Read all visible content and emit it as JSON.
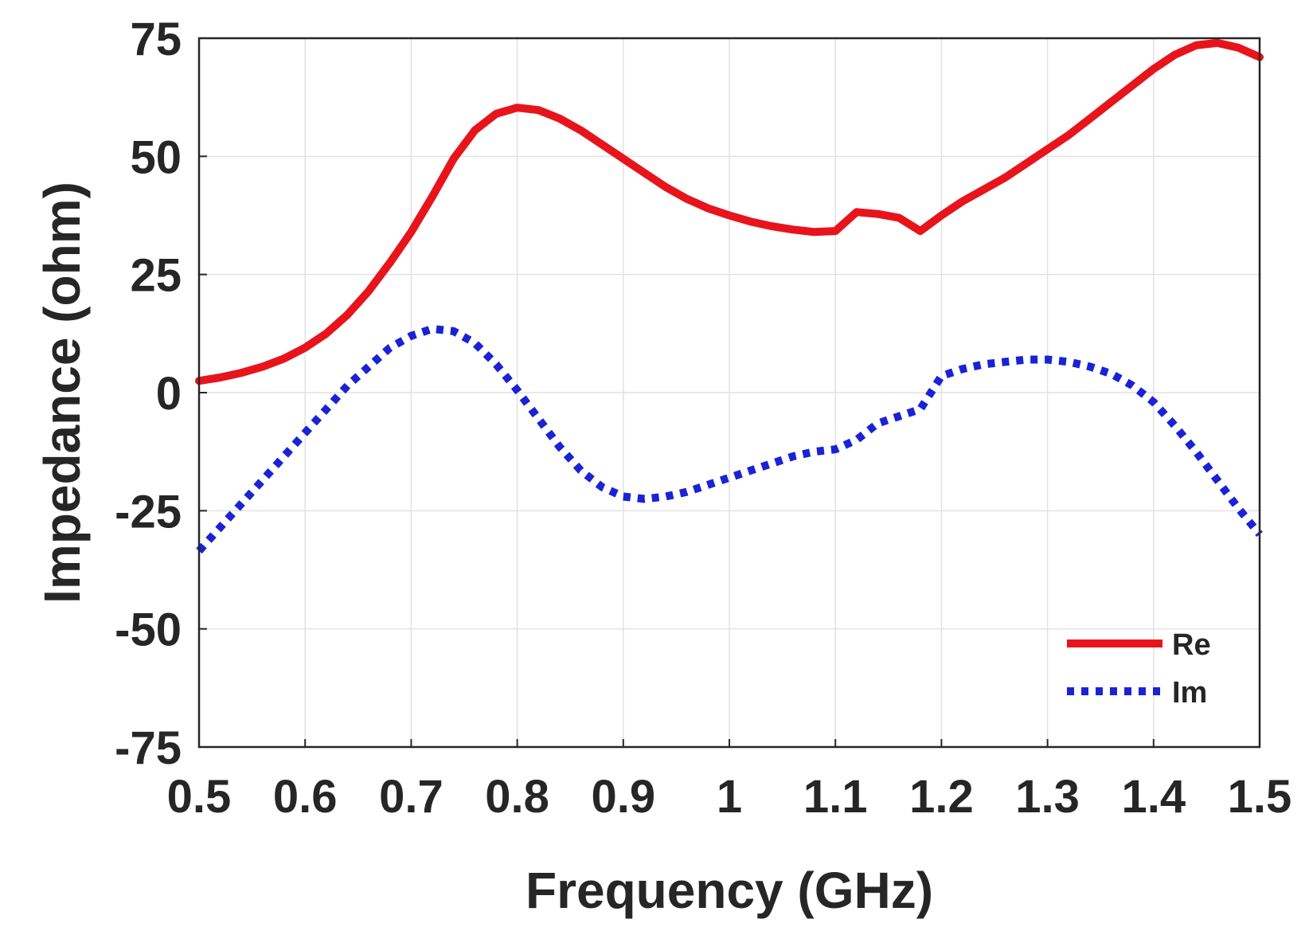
{
  "chart_data": {
    "type": "line",
    "xlabel": "Frequency (GHz)",
    "ylabel": "Impedance (ohm)",
    "xlim": [
      0.5,
      1.5
    ],
    "ylim": [
      -75,
      75
    ],
    "xticks": [
      "0.5",
      "0.6",
      "0.7",
      "0.8",
      "0.9",
      "1",
      "1.1",
      "1.2",
      "1.3",
      "1.4",
      "1.5"
    ],
    "yticks": [
      "75",
      "50",
      "25",
      "0",
      "-25",
      "-50",
      "-75"
    ],
    "grid": true,
    "legend_position": "bottom-right",
    "series": [
      {
        "name": "Re",
        "color": "#e8141c",
        "style": "solid",
        "x": [
          0.5,
          0.52,
          0.54,
          0.56,
          0.58,
          0.6,
          0.62,
          0.64,
          0.66,
          0.68,
          0.7,
          0.72,
          0.74,
          0.76,
          0.78,
          0.8,
          0.82,
          0.84,
          0.86,
          0.88,
          0.9,
          0.92,
          0.94,
          0.96,
          0.98,
          1.0,
          1.02,
          1.04,
          1.06,
          1.08,
          1.1,
          1.12,
          1.14,
          1.16,
          1.18,
          1.2,
          1.22,
          1.24,
          1.26,
          1.28,
          1.3,
          1.32,
          1.34,
          1.36,
          1.38,
          1.4,
          1.42,
          1.44,
          1.46,
          1.48,
          1.5
        ],
        "values": [
          2.5,
          3.2,
          4.2,
          5.5,
          7.2,
          9.5,
          12.5,
          16.5,
          21.5,
          27.5,
          34.0,
          41.5,
          49.5,
          55.5,
          59.0,
          60.3,
          59.8,
          58.0,
          55.5,
          52.5,
          49.5,
          46.5,
          43.5,
          41.0,
          39.0,
          37.5,
          36.2,
          35.2,
          34.5,
          34.0,
          34.2,
          38.2,
          37.8,
          37.0,
          34.2,
          37.5,
          40.5,
          43.0,
          45.5,
          48.5,
          51.5,
          54.5,
          58.0,
          61.5,
          65.0,
          68.5,
          71.5,
          73.5,
          74.0,
          73.0,
          71.0
        ]
      },
      {
        "name": "Im",
        "color": "#1a22d6",
        "style": "dotted",
        "x": [
          0.5,
          0.52,
          0.54,
          0.56,
          0.58,
          0.6,
          0.62,
          0.64,
          0.66,
          0.68,
          0.7,
          0.72,
          0.74,
          0.76,
          0.78,
          0.8,
          0.82,
          0.84,
          0.86,
          0.88,
          0.9,
          0.92,
          0.94,
          0.96,
          0.98,
          1.0,
          1.02,
          1.04,
          1.06,
          1.08,
          1.1,
          1.12,
          1.14,
          1.16,
          1.18,
          1.2,
          1.22,
          1.24,
          1.26,
          1.28,
          1.3,
          1.32,
          1.34,
          1.36,
          1.38,
          1.4,
          1.42,
          1.44,
          1.46,
          1.48,
          1.5
        ],
        "values": [
          -33.5,
          -28.5,
          -23.5,
          -18.5,
          -13.5,
          -8.5,
          -3.5,
          1.5,
          5.5,
          9.5,
          12.0,
          13.5,
          13.0,
          10.5,
          6.0,
          0.5,
          -5.5,
          -11.5,
          -16.5,
          -20.0,
          -22.0,
          -22.5,
          -22.0,
          -21.0,
          -19.5,
          -18.0,
          -16.5,
          -15.0,
          -13.5,
          -12.5,
          -12.0,
          -10.0,
          -6.5,
          -5.0,
          -3.5,
          3.5,
          5.0,
          6.0,
          6.5,
          7.0,
          7.0,
          6.5,
          5.5,
          4.0,
          1.5,
          -2.0,
          -7.0,
          -12.5,
          -18.5,
          -24.5,
          -30.0
        ]
      }
    ]
  }
}
